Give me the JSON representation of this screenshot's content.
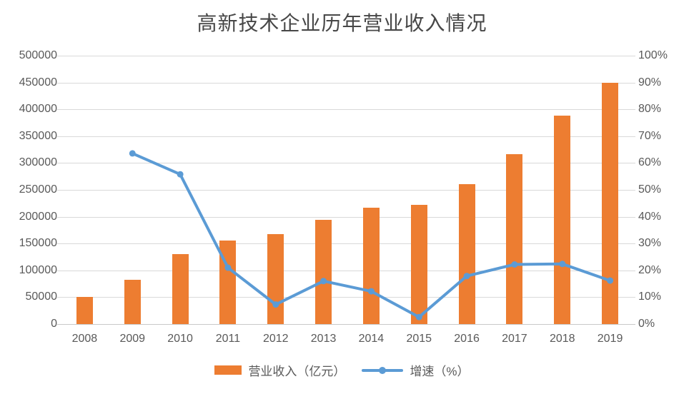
{
  "title": "高新技术企业历年营业收入情况",
  "chart_data": {
    "type": "bar",
    "subtype": "combo-bar-line-dual-axis",
    "title": "高新技术企业历年营业收入情况",
    "categories": [
      "2008",
      "2009",
      "2010",
      "2011",
      "2012",
      "2013",
      "2014",
      "2015",
      "2016",
      "2017",
      "2018",
      "2019"
    ],
    "series": [
      {
        "name": "营业收入（亿元）",
        "type": "bar",
        "axis": "left",
        "color": "#ED7D31",
        "values": [
          51000,
          83000,
          130000,
          156000,
          167000,
          194000,
          217000,
          222000,
          261000,
          317000,
          388000,
          450000
        ]
      },
      {
        "name": "增速（%）",
        "type": "line",
        "axis": "right",
        "color": "#5B9BD5",
        "values": [
          null,
          63.6,
          55.8,
          21.0,
          7.3,
          16.0,
          12.2,
          2.6,
          17.9,
          22.2,
          22.4,
          16.2
        ]
      }
    ],
    "left_axis": {
      "min": 0,
      "max": 500000,
      "step": 50000,
      "ticks": [
        "0",
        "50000",
        "100000",
        "150000",
        "200000",
        "250000",
        "300000",
        "350000",
        "400000",
        "450000",
        "500000"
      ]
    },
    "right_axis": {
      "min": 0,
      "max": 100,
      "step": 10,
      "ticks": [
        "0%",
        "10%",
        "20%",
        "30%",
        "40%",
        "50%",
        "60%",
        "70%",
        "80%",
        "90%",
        "100%"
      ]
    },
    "grid": true,
    "legend_position": "bottom"
  },
  "colors": {
    "bar": "#ED7D31",
    "line": "#5B9BD5",
    "text": "#595959",
    "grid": "#d9d9d9",
    "title": "#474747",
    "background": "#ffffff"
  }
}
